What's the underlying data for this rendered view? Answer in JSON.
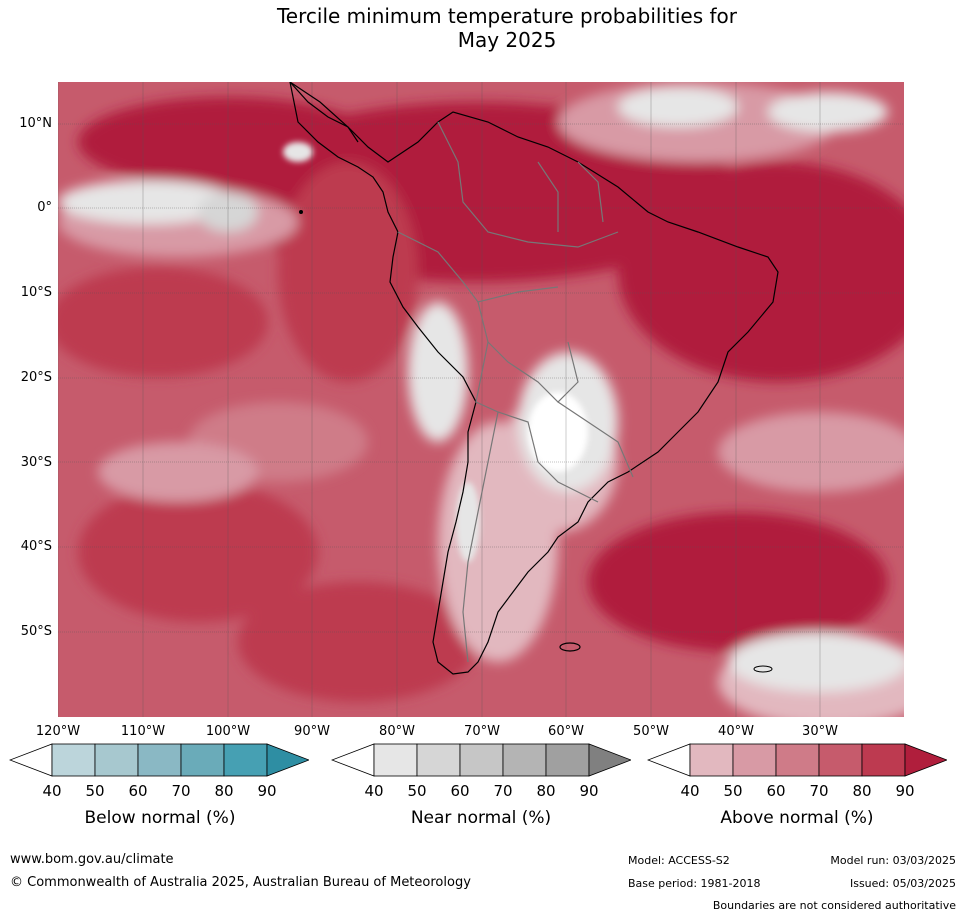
{
  "title_line1": "Tercile minimum temperature probabilities for",
  "title_line2": "May 2025",
  "lat_labels": [
    "10°N",
    "0°",
    "10°S",
    "20°S",
    "30°S",
    "40°S",
    "50°S"
  ],
  "lon_labels": [
    "120°W",
    "110°W",
    "100°W",
    "90°W",
    "80°W",
    "70°W",
    "60°W",
    "50°W",
    "40°W",
    "30°W"
  ],
  "colorbars": [
    {
      "title": "Below normal (%)",
      "ticks": [
        "40",
        "50",
        "60",
        "70",
        "80",
        "90"
      ],
      "colors": [
        "#bcd5db",
        "#a7c8cf",
        "#8ab8c4",
        "#6aabb9",
        "#46a0b3",
        "#2e8ea3"
      ],
      "low": "#ffffff"
    },
    {
      "title": "Near normal (%)",
      "ticks": [
        "40",
        "50",
        "60",
        "70",
        "80",
        "90"
      ],
      "colors": [
        "#e6e6e6",
        "#d6d6d6",
        "#c6c6c6",
        "#b4b4b4",
        "#a0a0a0",
        "#808080"
      ],
      "low": "#ffffff"
    },
    {
      "title": "Above normal (%)",
      "ticks": [
        "40",
        "50",
        "60",
        "70",
        "80",
        "90"
      ],
      "colors": [
        "#e2b8bf",
        "#d89aa5",
        "#cf7b88",
        "#c65b6c",
        "#bd3a50",
        "#b01e3c"
      ],
      "low": "#ffffff"
    }
  ],
  "footer": {
    "website": "www.bom.gov.au/climate",
    "copyright": "© Commonwealth of Australia 2025, Australian Bureau of Meteorology",
    "model": "Model: ACCESS-S2",
    "base_period": "Base period: 1981-2018",
    "model_run": "Model run: 03/03/2025",
    "issued": "Issued: 05/03/2025",
    "disclaimer": "Boundaries are not considered authoritative"
  }
}
